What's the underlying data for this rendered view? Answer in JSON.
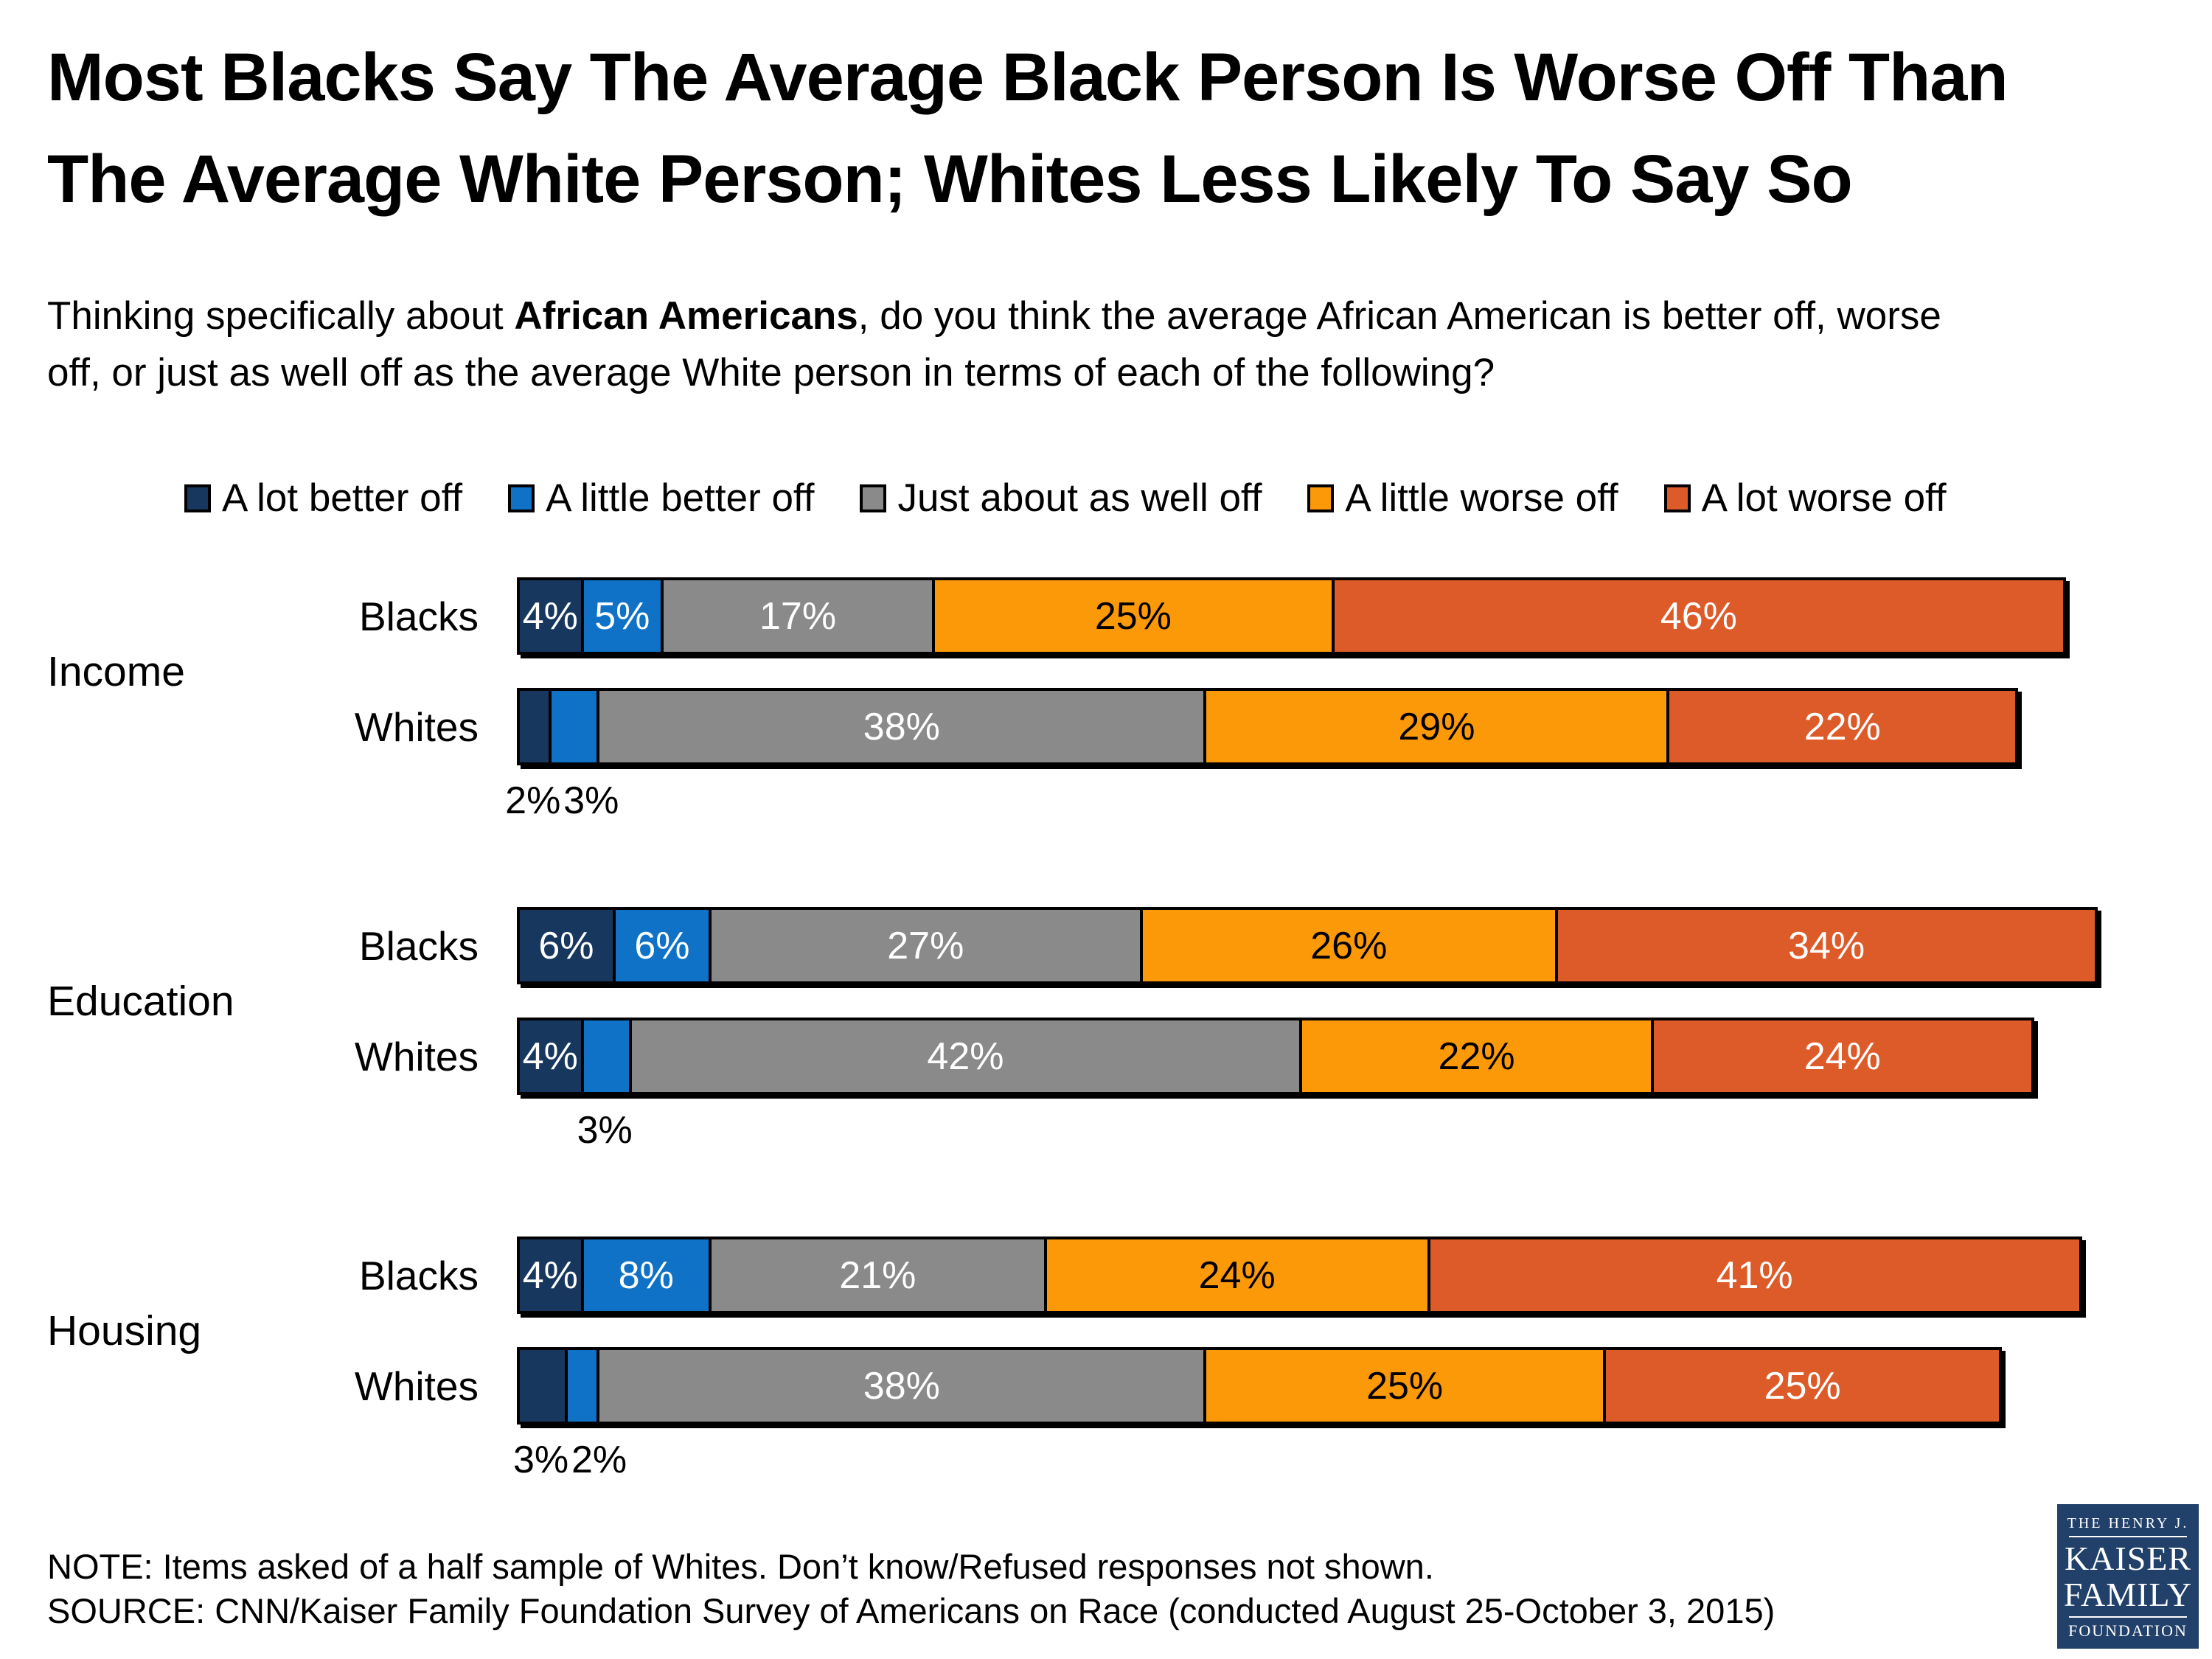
{
  "title": {
    "line1": "Most Blacks Say The Average Black Person Is Worse Off Than",
    "line2": "The Average White Person; Whites Less Likely To Say So"
  },
  "subtitle": {
    "pre": "Thinking specifically about ",
    "bold": "African Americans",
    "mid": ", do you think the average African American is better off, worse",
    "line2": "off, or just as well off as the average White person in terms of each of the following?"
  },
  "legend": [
    {
      "label": "A lot better off",
      "color": "#17375E"
    },
    {
      "label": "A little better off",
      "color": "#0F72C6"
    },
    {
      "label": "Just about as well off",
      "color": "#8A8A8A"
    },
    {
      "label": "A little worse off",
      "color": "#FB9908"
    },
    {
      "label": "A lot worse off",
      "color": "#DC5B28"
    }
  ],
  "chart_data": {
    "type": "bar",
    "orientation": "horizontal",
    "stacked": true,
    "unit": "%",
    "axis_range": [
      0,
      100
    ],
    "grid": false,
    "legend_position": "top",
    "series_names": [
      "A lot better off",
      "A little better off",
      "Just about as well off",
      "A little worse off",
      "A lot worse off"
    ],
    "colors": [
      "#17375E",
      "#0F72C6",
      "#8A8A8A",
      "#FB9908",
      "#DC5B28"
    ],
    "value_label_colors": [
      "#FFFFFF",
      "#FFFFFF",
      "#FFFFFF",
      "#000000",
      "#FFFFFF"
    ],
    "groups": [
      {
        "category": "Income",
        "rows": [
          {
            "label": "Blacks",
            "values": [
              4,
              5,
              17,
              25,
              46
            ],
            "below_label_indices": []
          },
          {
            "label": "Whites",
            "values": [
              2,
              3,
              38,
              29,
              22
            ],
            "below_label_indices": [
              0,
              1
            ]
          }
        ]
      },
      {
        "category": "Education",
        "rows": [
          {
            "label": "Blacks",
            "values": [
              6,
              6,
              27,
              26,
              34
            ],
            "below_label_indices": []
          },
          {
            "label": "Whites",
            "values": [
              4,
              3,
              42,
              22,
              24
            ],
            "below_label_indices": [
              1
            ]
          }
        ]
      },
      {
        "category": "Housing",
        "rows": [
          {
            "label": "Blacks",
            "values": [
              4,
              8,
              21,
              24,
              41
            ],
            "below_label_indices": []
          },
          {
            "label": "Whites",
            "values": [
              3,
              2,
              38,
              25,
              25
            ],
            "below_label_indices": [
              0,
              1
            ]
          }
        ]
      }
    ]
  },
  "note": "NOTE: Items asked of a half sample of Whites. Don’t know/Refused responses not shown.",
  "source": "SOURCE: CNN/Kaiser Family Foundation Survey of Americans on Race (conducted August 25-October 3, 2015)",
  "logo": {
    "bg": "#21406A",
    "line1": "THE HENRY J.",
    "line2": "KAISER",
    "line3": "FAMILY",
    "line4": "FOUNDATION"
  }
}
